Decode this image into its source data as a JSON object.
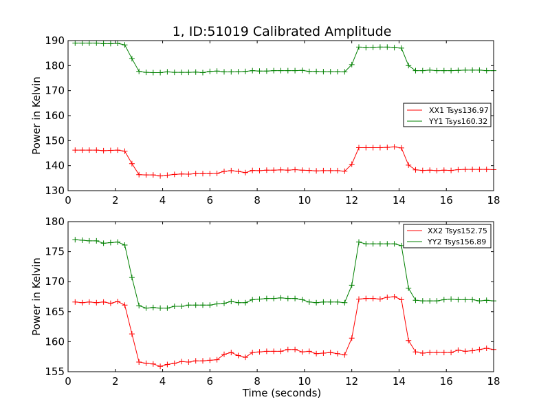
{
  "chart_data": [
    {
      "type": "line",
      "title": "1, ID:51019 Calibrated Amplitude",
      "xlabel": "",
      "ylabel": "Power in Kelvin",
      "xlim": [
        0,
        18
      ],
      "ylim": [
        130,
        190
      ],
      "xticks": [
        "0",
        "2",
        "4",
        "6",
        "8",
        "10",
        "12",
        "14",
        "16",
        "18"
      ],
      "yticks": [
        "130",
        "140",
        "150",
        "160",
        "170",
        "180",
        "190"
      ],
      "grid": false,
      "legend": "center-right",
      "x": [
        0.3,
        0.6,
        0.9,
        1.2,
        1.5,
        1.8,
        2.1,
        2.4,
        2.7,
        3.0,
        3.3,
        3.6,
        3.9,
        4.2,
        4.5,
        4.8,
        5.1,
        5.4,
        5.7,
        6.0,
        6.3,
        6.6,
        6.9,
        7.2,
        7.5,
        7.8,
        8.1,
        8.4,
        8.7,
        9.0,
        9.3,
        9.6,
        9.9,
        10.2,
        10.5,
        10.8,
        11.1,
        11.4,
        11.7,
        12.0,
        12.3,
        12.6,
        12.9,
        13.2,
        13.5,
        13.8,
        14.1,
        14.4,
        14.7,
        15.0,
        15.3,
        15.6,
        15.9,
        16.2,
        16.5,
        16.8,
        17.1,
        17.4,
        17.7,
        18.0
      ],
      "series": [
        {
          "name": "XX1 Tsys136.97",
          "color": "#ff0000",
          "values": [
            146.2,
            146.2,
            146.2,
            146.2,
            146.0,
            146.1,
            146.2,
            145.8,
            140.8,
            136.4,
            136.3,
            136.3,
            135.9,
            136.2,
            136.5,
            136.7,
            136.6,
            136.8,
            136.8,
            136.8,
            136.9,
            137.7,
            138.0,
            137.7,
            137.2,
            138.1,
            138.0,
            138.2,
            138.2,
            138.3,
            138.2,
            138.4,
            138.2,
            138.1,
            137.9,
            138.0,
            138.0,
            138.0,
            137.8,
            140.6,
            147.2,
            147.2,
            147.2,
            147.2,
            147.3,
            147.5,
            147.1,
            140.2,
            138.3,
            138.1,
            138.2,
            138.0,
            138.2,
            138.1,
            138.4,
            138.5,
            138.5,
            138.5,
            138.5,
            138.4
          ]
        },
        {
          "name": "YY1 Tsys160.32",
          "color": "#008000",
          "values": [
            189.0,
            189.0,
            189.0,
            189.0,
            188.8,
            188.8,
            188.9,
            188.3,
            182.8,
            177.7,
            177.3,
            177.2,
            177.2,
            177.5,
            177.3,
            177.3,
            177.3,
            177.4,
            177.2,
            177.7,
            177.8,
            177.5,
            177.5,
            177.6,
            177.7,
            178.0,
            177.8,
            177.8,
            178.0,
            178.0,
            178.0,
            178.0,
            178.1,
            177.7,
            177.7,
            177.6,
            177.6,
            177.6,
            177.5,
            180.4,
            187.4,
            187.2,
            187.3,
            187.4,
            187.4,
            187.2,
            187.0,
            180.0,
            178.0,
            178.0,
            178.2,
            178.0,
            178.0,
            178.0,
            178.1,
            178.2,
            178.2,
            178.2,
            178.0,
            178.0
          ]
        }
      ]
    },
    {
      "type": "line",
      "title": "",
      "xlabel": "Time (seconds)",
      "ylabel": "Power in Kelvin",
      "xlim": [
        0,
        18
      ],
      "ylim": [
        155,
        180
      ],
      "xticks": [
        "0",
        "2",
        "4",
        "6",
        "8",
        "10",
        "12",
        "14",
        "16",
        "18"
      ],
      "yticks": [
        "155",
        "160",
        "165",
        "170",
        "175",
        "180"
      ],
      "grid": false,
      "legend": "top-right",
      "x": [
        0.3,
        0.6,
        0.9,
        1.2,
        1.5,
        1.8,
        2.1,
        2.4,
        2.7,
        3.0,
        3.3,
        3.6,
        3.9,
        4.2,
        4.5,
        4.8,
        5.1,
        5.4,
        5.7,
        6.0,
        6.3,
        6.6,
        6.9,
        7.2,
        7.5,
        7.8,
        8.1,
        8.4,
        8.7,
        9.0,
        9.3,
        9.6,
        9.9,
        10.2,
        10.5,
        10.8,
        11.1,
        11.4,
        11.7,
        12.0,
        12.3,
        12.6,
        12.9,
        13.2,
        13.5,
        13.8,
        14.1,
        14.4,
        14.7,
        15.0,
        15.3,
        15.6,
        15.9,
        16.2,
        16.5,
        16.8,
        17.1,
        17.4,
        17.7,
        18.0
      ],
      "series": [
        {
          "name": "XX2 Tsys152.75",
          "color": "#ff0000",
          "values": [
            166.6,
            166.5,
            166.6,
            166.5,
            166.6,
            166.4,
            166.7,
            166.1,
            161.3,
            156.6,
            156.4,
            156.3,
            155.9,
            156.2,
            156.4,
            156.7,
            156.6,
            156.8,
            156.8,
            156.9,
            157.0,
            157.9,
            158.2,
            157.7,
            157.4,
            158.2,
            158.3,
            158.4,
            158.4,
            158.4,
            158.7,
            158.7,
            158.3,
            158.4,
            158.0,
            158.1,
            158.2,
            158.0,
            157.8,
            160.6,
            167.1,
            167.2,
            167.2,
            167.1,
            167.4,
            167.5,
            167.0,
            160.2,
            158.3,
            158.1,
            158.2,
            158.2,
            158.2,
            158.2,
            158.6,
            158.4,
            158.5,
            158.7,
            158.9,
            158.7
          ]
        },
        {
          "name": "YY2 Tsys156.89",
          "color": "#008000",
          "values": [
            177.0,
            176.9,
            176.8,
            176.8,
            176.4,
            176.5,
            176.6,
            176.1,
            170.7,
            166.0,
            165.6,
            165.7,
            165.6,
            165.6,
            165.9,
            165.9,
            166.1,
            166.1,
            166.1,
            166.1,
            166.3,
            166.4,
            166.7,
            166.5,
            166.5,
            167.0,
            167.1,
            167.2,
            167.2,
            167.3,
            167.2,
            167.2,
            167.0,
            166.6,
            166.5,
            166.6,
            166.6,
            166.6,
            166.5,
            169.4,
            176.6,
            176.3,
            176.3,
            176.3,
            176.3,
            176.3,
            176.0,
            168.9,
            166.9,
            166.8,
            166.8,
            166.8,
            167.0,
            167.1,
            167.0,
            167.0,
            167.0,
            166.8,
            166.9,
            166.8
          ]
        }
      ]
    }
  ]
}
